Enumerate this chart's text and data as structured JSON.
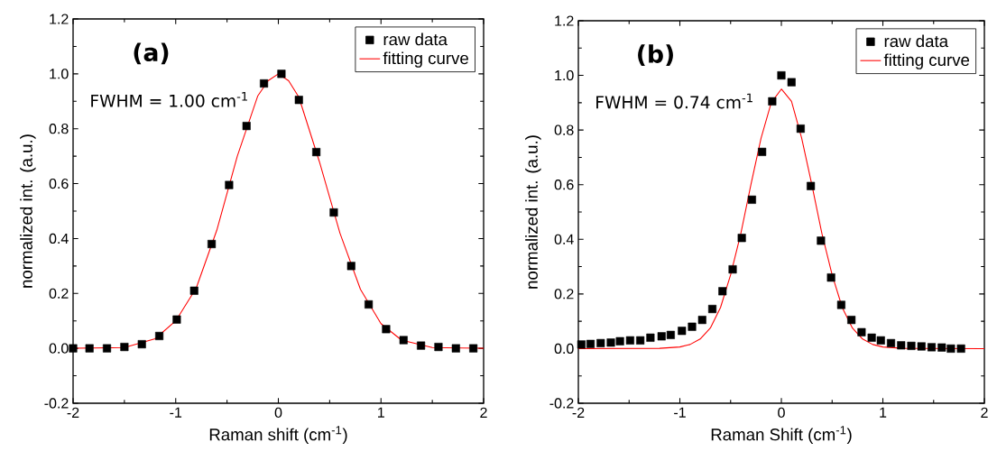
{
  "chart_data": [
    {
      "type": "scatter",
      "xlabel": "Raman shift (cm$^{-1}$)",
      "ylabel": "normalized int. (a.u.)",
      "annotations": [
        "(a)",
        "FWHM = 1.00 cm$^{-1}$"
      ],
      "xlim": [
        -2,
        2
      ],
      "xticks": [
        -2,
        -1,
        0,
        1,
        2
      ],
      "ylim": [
        -0.2,
        1.2
      ],
      "yticks": [
        {
          "value": -0.2,
          "label": "-0.2"
        },
        {
          "value": 0,
          "label": "0.0"
        },
        {
          "value": 0.2,
          "label": "0.2"
        },
        {
          "value": 0.4,
          "label": "0.4"
        },
        {
          "value": 0.6,
          "label": "0.6"
        },
        {
          "value": 0.8,
          "label": "0.8"
        },
        {
          "value": 1,
          "label": "1.0"
        },
        {
          "value": 1.2,
          "label": "1.2"
        }
      ],
      "legend": "top right",
      "grid": false,
      "series": [
        {
          "name": "raw data",
          "marker": "square",
          "color": "#000000",
          "x": [
            -2.0,
            -1.84,
            -1.67,
            -1.5,
            -1.33,
            -1.16,
            -0.99,
            -0.82,
            -0.65,
            -0.48,
            -0.31,
            -0.14,
            0.03,
            0.2,
            0.37,
            0.54,
            0.71,
            0.88,
            1.05,
            1.22,
            1.39,
            1.56,
            1.73,
            1.9
          ],
          "values": [
            0,
            0,
            0,
            0.005,
            0.015,
            0.045,
            0.105,
            0.21,
            0.38,
            0.595,
            0.81,
            0.965,
            1.0,
            0.905,
            0.715,
            0.495,
            0.3,
            0.16,
            0.07,
            0.03,
            0.01,
            0.005,
            0,
            0
          ]
        },
        {
          "name": "fitting curve",
          "type": "line",
          "color": "#ff0000",
          "x": [
            -2,
            -1.5,
            -1.2,
            -1.0,
            -0.8,
            -0.6,
            -0.4,
            -0.2,
            -0.1,
            0,
            0.1,
            0.2,
            0.4,
            0.6,
            0.8,
            1.0,
            1.2,
            1.5,
            2
          ],
          "values": [
            0,
            0.003,
            0.035,
            0.1,
            0.22,
            0.43,
            0.7,
            0.92,
            0.975,
            1.0,
            0.975,
            0.915,
            0.68,
            0.42,
            0.215,
            0.09,
            0.03,
            0.003,
            0
          ]
        }
      ]
    },
    {
      "type": "scatter",
      "xlabel": "Raman Shift (cm$^{-1}$)",
      "ylabel": "normalized int. (a.u.)",
      "annotations": [
        "(b)",
        "FWHM = 0.74 cm$^{-1}$"
      ],
      "xlim": [
        -2,
        2
      ],
      "xticks": [
        -2,
        -1,
        0,
        1,
        2
      ],
      "ylim": [
        -0.2,
        1.2
      ],
      "yticks": [
        {
          "value": -0.2,
          "label": "-0.2"
        },
        {
          "value": 0,
          "label": "0.0"
        },
        {
          "value": 0.2,
          "label": "0.2"
        },
        {
          "value": 0.4,
          "label": "0.4"
        },
        {
          "value": 0.6,
          "label": "0.6"
        },
        {
          "value": 0.8,
          "label": "0.8"
        },
        {
          "value": 1,
          "label": "1.0"
        },
        {
          "value": 1.2,
          "label": "1.2"
        }
      ],
      "legend": "top right",
      "grid": false,
      "series": [
        {
          "name": "raw data",
          "marker": "square",
          "color": "#000000",
          "x": [
            -1.97,
            -1.88,
            -1.78,
            -1.68,
            -1.59,
            -1.49,
            -1.39,
            -1.29,
            -1.18,
            -1.09,
            -0.98,
            -0.88,
            -0.78,
            -0.68,
            -0.58,
            -0.48,
            -0.39,
            -0.29,
            -0.19,
            -0.09,
            0.0,
            0.1,
            0.19,
            0.29,
            0.39,
            0.49,
            0.59,
            0.69,
            0.79,
            0.89,
            0.98,
            1.08,
            1.18,
            1.28,
            1.38,
            1.48,
            1.58,
            1.67,
            1.77
          ],
          "values": [
            0.015,
            0.017,
            0.02,
            0.022,
            0.027,
            0.03,
            0.03,
            0.04,
            0.045,
            0.05,
            0.065,
            0.08,
            0.105,
            0.145,
            0.21,
            0.29,
            0.405,
            0.545,
            0.72,
            0.905,
            1.0,
            0.975,
            0.805,
            0.595,
            0.395,
            0.26,
            0.16,
            0.105,
            0.06,
            0.04,
            0.03,
            0.02,
            0.012,
            0.01,
            0.008,
            0.005,
            0.004,
            0,
            0
          ]
        },
        {
          "name": "fitting curve",
          "type": "line",
          "color": "#ff0000",
          "x": [
            -2,
            -1.2,
            -1.0,
            -0.9,
            -0.8,
            -0.7,
            -0.6,
            -0.5,
            -0.4,
            -0.3,
            -0.2,
            -0.1,
            0,
            0.1,
            0.2,
            0.3,
            0.4,
            0.5,
            0.6,
            0.7,
            0.8,
            0.9,
            1.0,
            1.2,
            2
          ],
          "values": [
            0,
            0.001,
            0.006,
            0.015,
            0.035,
            0.075,
            0.15,
            0.27,
            0.42,
            0.6,
            0.77,
            0.9,
            0.95,
            0.905,
            0.77,
            0.6,
            0.42,
            0.27,
            0.15,
            0.075,
            0.035,
            0.015,
            0.006,
            0.001,
            0
          ]
        }
      ]
    }
  ]
}
